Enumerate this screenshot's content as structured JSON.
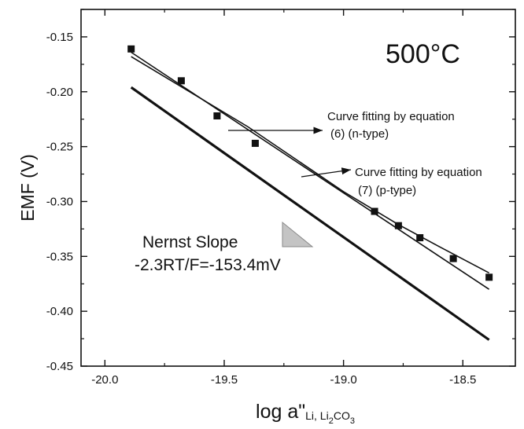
{
  "chart_data": {
    "type": "scatter",
    "title": "",
    "temperature_label": "500°C",
    "xlabel": {
      "main": "log a\"",
      "sub_li": "Li, Li",
      "sub_2": "2",
      "sub_co": "CO",
      "sub_3": "3"
    },
    "ylabel": "EMF (V)",
    "xlim": [
      -20.1,
      -18.28
    ],
    "ylim": [
      -0.45,
      -0.125
    ],
    "grid": false,
    "x_ticks": [
      -20.0,
      -19.5,
      -19.0,
      -18.5
    ],
    "x_tick_labels": [
      "-20.0",
      "-19.5",
      "-19.0",
      "-18.5"
    ],
    "y_ticks": [
      -0.15,
      -0.2,
      -0.25,
      -0.3,
      -0.35,
      -0.4,
      -0.45
    ],
    "y_tick_labels": [
      "-0.15",
      "-0.20",
      "-0.25",
      "-0.30",
      "-0.35",
      "-0.40",
      "-0.45"
    ],
    "series": [
      {
        "kind": "scatter",
        "points": [
          [
            -19.89,
            -0.161
          ],
          [
            -19.68,
            -0.19
          ],
          [
            -19.53,
            -0.222
          ],
          [
            -19.37,
            -0.247
          ],
          [
            -18.87,
            -0.309
          ],
          [
            -18.77,
            -0.322
          ],
          [
            -18.68,
            -0.333
          ],
          [
            -18.54,
            -0.352
          ],
          [
            -18.39,
            -0.369
          ]
        ]
      },
      {
        "kind": "line",
        "ref": "equation (6) (n-type)",
        "points": [
          [
            -19.89,
            -0.164
          ],
          [
            -18.39,
            -0.38
          ]
        ]
      },
      {
        "kind": "curve",
        "ref": "equation (7) (p-type)",
        "points": [
          [
            -19.89,
            -0.168
          ],
          [
            -19.4,
            -0.232
          ],
          [
            -19.0,
            -0.291
          ],
          [
            -18.77,
            -0.321
          ],
          [
            -18.6,
            -0.341
          ],
          [
            -18.39,
            -0.365
          ]
        ]
      },
      {
        "kind": "line",
        "ref": "Nernst slope",
        "points": [
          [
            -19.89,
            -0.196
          ],
          [
            -18.39,
            -0.426
          ]
        ]
      }
    ],
    "annotations": {
      "n_type_line1": "Curve fitting by equation",
      "n_type_line2": "(6) (n-type)",
      "p_type_line1": "Curve fitting by equation",
      "p_type_line2": "(7) (p-type)",
      "nernst_line1": "Nernst Slope",
      "nernst_line2": "-2.3RT/F=-153.4mV"
    },
    "colors": {
      "line": "#111111",
      "triangle_fill": "#c4c4c4",
      "triangle_edge": "#888888"
    }
  }
}
